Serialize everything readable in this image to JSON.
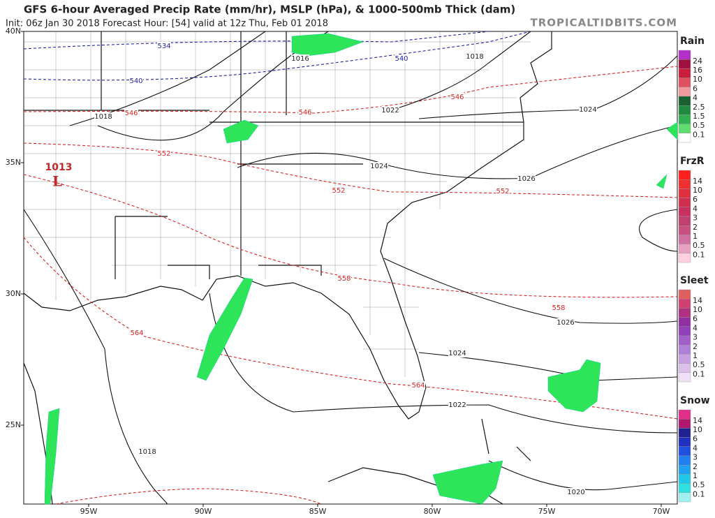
{
  "header": {
    "title": "GFS 6-hour Averaged Precip Rate (mm/hr), MSLP (hPa), & 1000-500mb Thick (dam)",
    "subtitle": "Init: 06z Jan 30 2018   Forecast Hour: [54]   valid at 12z Thu, Feb 01 2018",
    "site": "TROPICALTIDBITS.COM"
  },
  "axes": {
    "lat_labels": [
      "40N",
      "35N",
      "30N",
      "25N"
    ],
    "lon_labels": [
      "95W",
      "90W",
      "85W",
      "80W",
      "75W",
      "70W"
    ]
  },
  "low": {
    "pressure": "1013",
    "letter": "L"
  },
  "mslp_labels": [
    "1018",
    "1016",
    "1018",
    "1022",
    "1024",
    "1024",
    "1026",
    "1026",
    "1024",
    "1022",
    "1018",
    "1020"
  ],
  "thickness_labels": [
    "534",
    "540",
    "540",
    "546",
    "546",
    "546",
    "552",
    "552",
    "552",
    "558",
    "558",
    "564",
    "564"
  ],
  "legends": [
    {
      "title": "Rain",
      "labels": [
        "24",
        "16",
        "10",
        "6",
        "4",
        "2.5",
        "1.5",
        "0.5",
        "0.1"
      ],
      "colors": [
        "#b030c8",
        "#a01040",
        "#c81e3c",
        "#e05060",
        "#f09aa0",
        "#1a6030",
        "#208a40",
        "#30b050",
        "#60dd70",
        "#ffffff"
      ]
    },
    {
      "title": "FrzR",
      "labels": [
        "14",
        "10",
        "6",
        "4",
        "3",
        "2",
        "1",
        "0.5",
        "0.1"
      ],
      "colors": [
        "#ff2020",
        "#f03030",
        "#e03040",
        "#d03050",
        "#c83060",
        "#c04070",
        "#c85080",
        "#d070a0",
        "#e8a0c0",
        "#ffd0e0"
      ]
    },
    {
      "title": "Sleet",
      "labels": [
        "14",
        "10",
        "6",
        "4",
        "3",
        "2",
        "1",
        "0.5",
        "0.1"
      ],
      "colors": [
        "#e06060",
        "#d04070",
        "#b03080",
        "#9030a0",
        "#9040b8",
        "#a060c8",
        "#b080d8",
        "#c8a0e0",
        "#dcc0ec",
        "#efe0f8"
      ]
    },
    {
      "title": "Snow",
      "labels": [
        "14",
        "10",
        "6",
        "4",
        "3",
        "2",
        "1",
        "0.5",
        "0.1"
      ],
      "colors": [
        "#e0308a",
        "#b01870",
        "#202090",
        "#2030c0",
        "#2050e0",
        "#2080f0",
        "#20a0f0",
        "#20c8e8",
        "#30e0e0",
        "#a0f0f0"
      ]
    }
  ]
}
